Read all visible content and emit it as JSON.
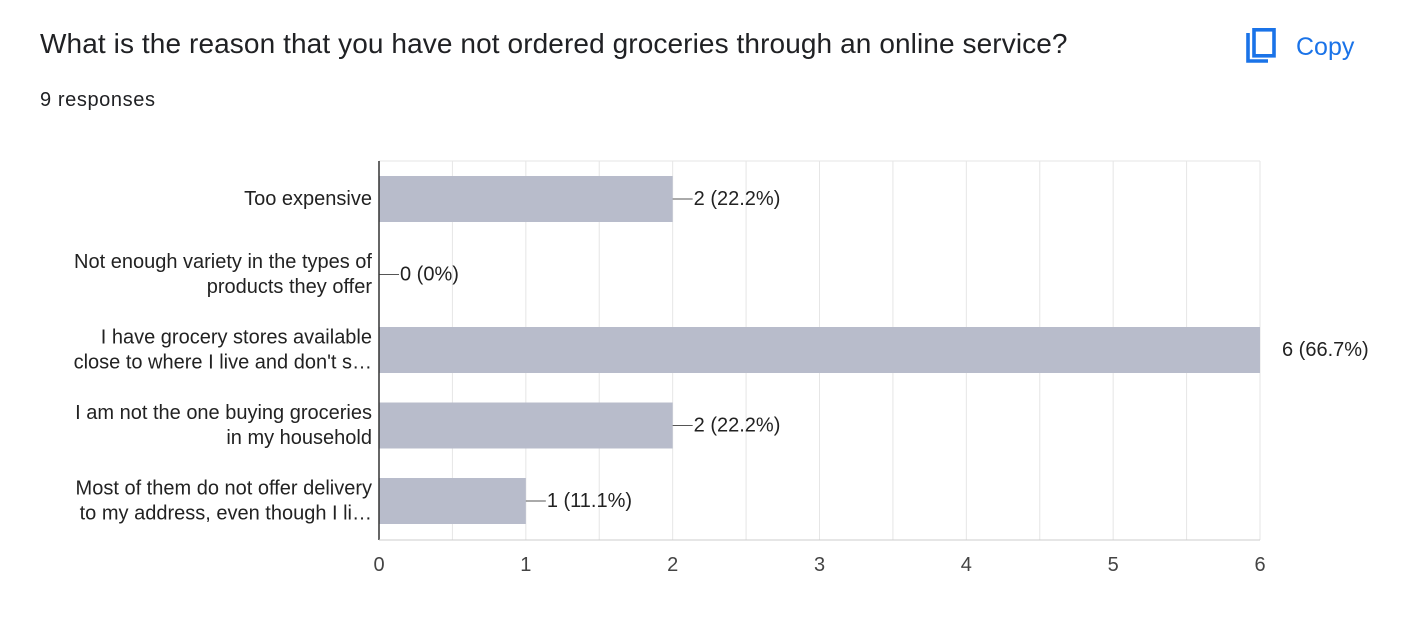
{
  "header": {
    "title": "What is the reason that you have not ordered groceries through an online service?",
    "responses": "9 responses",
    "copy_label": "Copy",
    "copy_icon": "copy-icon"
  },
  "colors": {
    "bar": "#b8bccb",
    "grid": "#e6e6e6",
    "axis": "#333333",
    "text": "#222222",
    "accent": "#1a73e8"
  },
  "chart_data": {
    "type": "bar",
    "orientation": "horizontal",
    "title": "",
    "xlabel": "",
    "ylabel": "",
    "xlim": [
      0,
      6
    ],
    "x_ticks": [
      "0",
      "1",
      "2",
      "3",
      "4",
      "5",
      "6"
    ],
    "grid": true,
    "legend": "none",
    "categories": [
      [
        "Too expensive"
      ],
      [
        "Not enough variety in the types of",
        "products they offer"
      ],
      [
        "I have grocery stores available",
        "close to where I live and don't s…"
      ],
      [
        "I am not the one buying groceries",
        "in my household"
      ],
      [
        "Most of them do not offer delivery",
        "to my address, even though I li…"
      ]
    ],
    "values": [
      2,
      0,
      6,
      2,
      1
    ],
    "data_labels": [
      "2 (22.2%)",
      "0 (0%)",
      "6 (66.7%)",
      "2 (22.2%)",
      "1 (11.1%)"
    ]
  }
}
